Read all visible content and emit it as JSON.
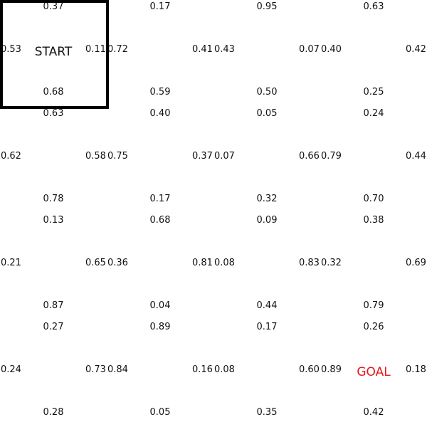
{
  "grid": {
    "rows": 4,
    "cols": 4,
    "start_label": "START",
    "goal_label": "GOAL",
    "start_color": "#111111",
    "goal_color": "#e8161b",
    "agent_position": {
      "row": 0,
      "col": 0
    },
    "cells": [
      {
        "row": 0,
        "col": 0,
        "up": "0.37",
        "down": "0.68",
        "left": "0.53",
        "right": "0.11",
        "label": "START"
      },
      {
        "row": 0,
        "col": 1,
        "up": "0.17",
        "down": "0.59",
        "left": "0.72",
        "right": "0.41"
      },
      {
        "row": 0,
        "col": 2,
        "up": "0.95",
        "down": "0.50",
        "left": "0.43",
        "right": "0.07"
      },
      {
        "row": 0,
        "col": 3,
        "up": "0.63",
        "down": "0.25",
        "left": "0.40",
        "right": "0.42"
      },
      {
        "row": 1,
        "col": 0,
        "up": "0.63",
        "down": "0.78",
        "left": "0.62",
        "right": "0.58"
      },
      {
        "row": 1,
        "col": 1,
        "up": "0.40",
        "down": "0.17",
        "left": "0.75",
        "right": "0.37"
      },
      {
        "row": 1,
        "col": 2,
        "up": "0.05",
        "down": "0.32",
        "left": "0.07",
        "right": "0.66"
      },
      {
        "row": 1,
        "col": 3,
        "up": "0.24",
        "down": "0.70",
        "left": "0.79",
        "right": "0.44"
      },
      {
        "row": 2,
        "col": 0,
        "up": "0.13",
        "down": "0.87",
        "left": "0.21",
        "right": "0.65"
      },
      {
        "row": 2,
        "col": 1,
        "up": "0.68",
        "down": "0.04",
        "left": "0.36",
        "right": "0.81"
      },
      {
        "row": 2,
        "col": 2,
        "up": "0.09",
        "down": "0.44",
        "left": "0.08",
        "right": "0.83"
      },
      {
        "row": 2,
        "col": 3,
        "up": "0.38",
        "down": "0.79",
        "left": "0.32",
        "right": "0.69"
      },
      {
        "row": 3,
        "col": 0,
        "up": "0.27",
        "down": "0.28",
        "left": "0.24",
        "right": "0.73"
      },
      {
        "row": 3,
        "col": 1,
        "up": "0.89",
        "down": "0.05",
        "left": "0.84",
        "right": "0.16"
      },
      {
        "row": 3,
        "col": 2,
        "up": "0.17",
        "down": "0.35",
        "left": "0.08",
        "right": "0.60"
      },
      {
        "row": 3,
        "col": 3,
        "up": "0.26",
        "down": "0.42",
        "left": "0.89",
        "right": "0.18",
        "label": "GOAL"
      }
    ]
  }
}
